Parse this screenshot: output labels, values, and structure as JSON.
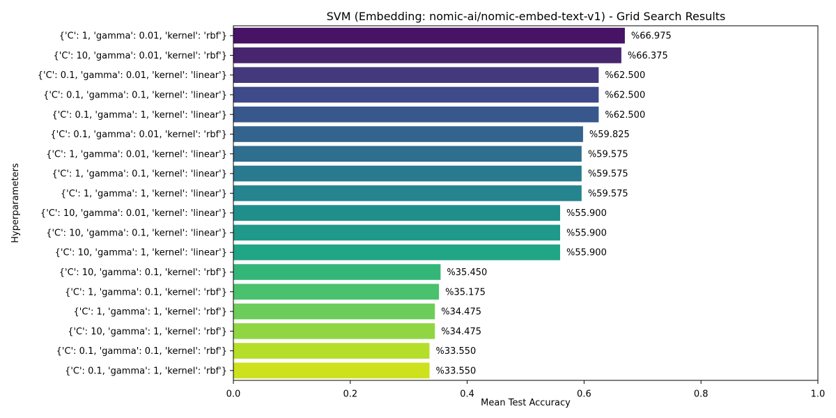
{
  "chart_data": {
    "type": "bar",
    "orientation": "horizontal",
    "title": "SVM (Embedding: nomic-ai/nomic-embed-text-v1) - Grid Search Results",
    "xlabel": "Mean Test Accuracy",
    "ylabel": "Hyperparameters",
    "xlim": [
      0,
      1.0
    ],
    "xticks": [
      "0.0",
      "0.2",
      "0.4",
      "0.6",
      "0.8",
      "1.0"
    ],
    "xtick_values": [
      0,
      0.2,
      0.4,
      0.6,
      0.8,
      1.0
    ],
    "grid": false,
    "colormap": "viridis",
    "categories": [
      "{'C': 1, 'gamma': 0.01, 'kernel': 'rbf'}",
      "{'C': 10, 'gamma': 0.01, 'kernel': 'rbf'}",
      "{'C': 0.1, 'gamma': 0.01, 'kernel': 'linear'}",
      "{'C': 0.1, 'gamma': 0.1, 'kernel': 'linear'}",
      "{'C': 0.1, 'gamma': 1, 'kernel': 'linear'}",
      "{'C': 0.1, 'gamma': 0.01, 'kernel': 'rbf'}",
      "{'C': 1, 'gamma': 0.01, 'kernel': 'linear'}",
      "{'C': 1, 'gamma': 0.1, 'kernel': 'linear'}",
      "{'C': 1, 'gamma': 1, 'kernel': 'linear'}",
      "{'C': 10, 'gamma': 0.01, 'kernel': 'linear'}",
      "{'C': 10, 'gamma': 0.1, 'kernel': 'linear'}",
      "{'C': 10, 'gamma': 1, 'kernel': 'linear'}",
      "{'C': 10, 'gamma': 0.1, 'kernel': 'rbf'}",
      "{'C': 1, 'gamma': 0.1, 'kernel': 'rbf'}",
      "{'C': 1, 'gamma': 1, 'kernel': 'rbf'}",
      "{'C': 10, 'gamma': 1, 'kernel': 'rbf'}",
      "{'C': 0.1, 'gamma': 0.1, 'kernel': 'rbf'}",
      "{'C': 0.1, 'gamma': 1, 'kernel': 'rbf'}"
    ],
    "values": [
      0.66975,
      0.66375,
      0.625,
      0.625,
      0.625,
      0.59825,
      0.59575,
      0.59575,
      0.59575,
      0.559,
      0.559,
      0.559,
      0.3545,
      0.35175,
      0.34475,
      0.34475,
      0.3355,
      0.3355
    ],
    "labels": [
      "%66.975",
      "%66.375",
      "%62.500",
      "%62.500",
      "%62.500",
      "%59.825",
      "%59.575",
      "%59.575",
      "%59.575",
      "%55.900",
      "%55.900",
      "%55.900",
      "%35.450",
      "%35.175",
      "%34.475",
      "%34.475",
      "%33.550",
      "%33.550"
    ],
    "colors": [
      "#471365",
      "#48256f",
      "#45397d",
      "#3e4a89",
      "#38578c",
      "#33648d",
      "#2e6e8e",
      "#297a8e",
      "#25848e",
      "#208f8c",
      "#1f998a",
      "#21a685",
      "#34b679",
      "#4ac16d",
      "#6ccd5a",
      "#90d643",
      "#b5de2b",
      "#cde11d"
    ]
  }
}
